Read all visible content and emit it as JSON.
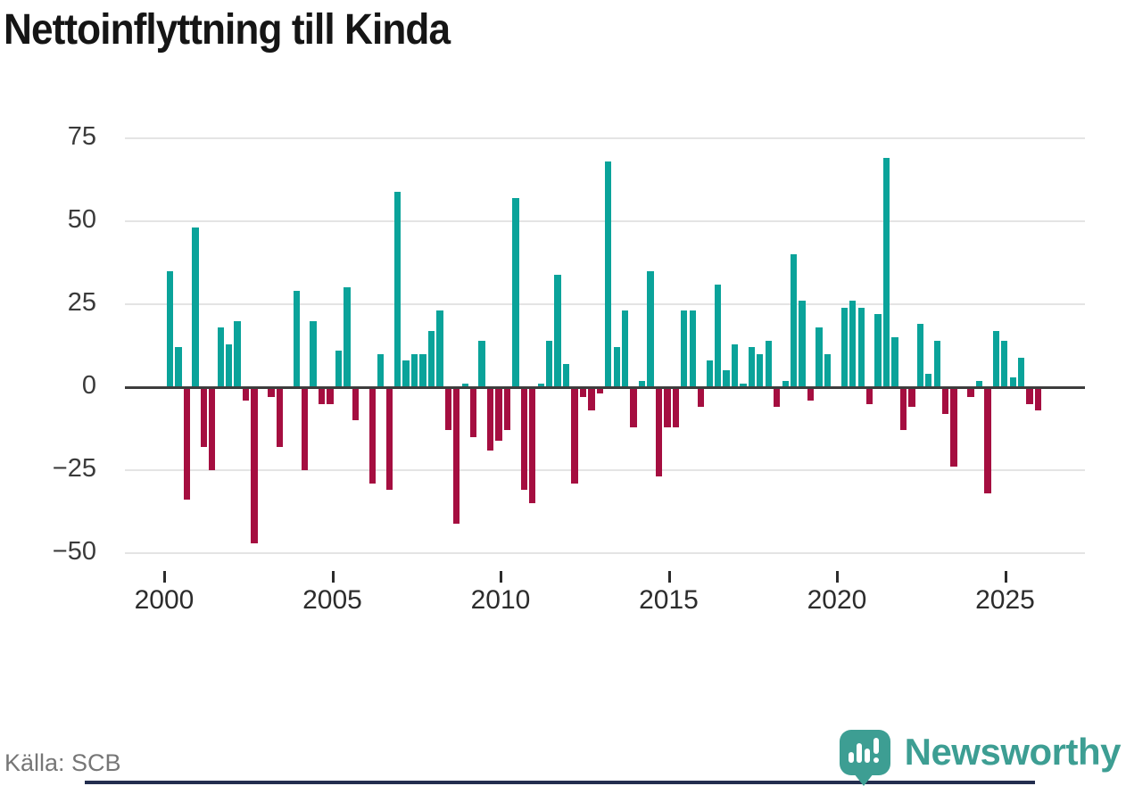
{
  "title": "Nettoinflyttning till Kinda",
  "source": "Källa: SCB",
  "logo": {
    "text": "Newsworthy",
    "icon": "speech-bubble-bar-chart-icon"
  },
  "colors": {
    "positive_bar": "#0aa39a",
    "negative_bar": "#a50e40",
    "zero_line": "#3d3d3d",
    "gridline": "#e4e4e4",
    "title_text": "#151515",
    "axis_text": "#3a3a3a",
    "source_text": "#767676",
    "logo": "#3d9e93",
    "footer_bar": "#232e4f"
  },
  "chart_data": {
    "type": "bar",
    "title": "Nettoinflyttning till Kinda",
    "xlabel": "",
    "ylabel": "",
    "resolution": "quarterly",
    "grid": "horizontal",
    "legend": "none",
    "ylim": [
      -50,
      75
    ],
    "y_ticks": [
      75,
      50,
      25,
      0,
      -25,
      -50
    ],
    "x_ticks": [
      "2000",
      "2005",
      "2010",
      "2015",
      "2020",
      "2025"
    ],
    "series": [
      {
        "year": 2000,
        "values": [
          35,
          12,
          -34,
          48
        ]
      },
      {
        "year": 2001,
        "values": [
          -18,
          -25,
          18,
          13
        ]
      },
      {
        "year": 2002,
        "values": [
          20,
          -4,
          -47,
          0
        ]
      },
      {
        "year": 2003,
        "values": [
          -3,
          -18,
          0,
          29
        ]
      },
      {
        "year": 2004,
        "values": [
          -25,
          20,
          -5,
          -5
        ]
      },
      {
        "year": 2005,
        "values": [
          11,
          30,
          -10,
          0
        ]
      },
      {
        "year": 2006,
        "values": [
          -29,
          10,
          -31,
          59
        ]
      },
      {
        "year": 2007,
        "values": [
          8,
          10,
          10,
          17
        ]
      },
      {
        "year": 2008,
        "values": [
          23,
          -13,
          -41,
          1
        ]
      },
      {
        "year": 2009,
        "values": [
          -15,
          14,
          -19,
          -16
        ]
      },
      {
        "year": 2010,
        "values": [
          -13,
          57,
          -31,
          -35
        ]
      },
      {
        "year": 2011,
        "values": [
          1,
          14,
          34,
          7
        ]
      },
      {
        "year": 2012,
        "values": [
          -29,
          -3,
          -7,
          -2
        ]
      },
      {
        "year": 2013,
        "values": [
          68,
          12,
          23,
          -12
        ]
      },
      {
        "year": 2014,
        "values": [
          2,
          35,
          -27,
          -12
        ]
      },
      {
        "year": 2015,
        "values": [
          -12,
          23,
          23,
          -6
        ]
      },
      {
        "year": 2016,
        "values": [
          8,
          31,
          5,
          13
        ]
      },
      {
        "year": 2017,
        "values": [
          1,
          12,
          10,
          14
        ]
      },
      {
        "year": 2018,
        "values": [
          -6,
          2,
          40,
          26
        ]
      },
      {
        "year": 2019,
        "values": [
          -4,
          18,
          10,
          0
        ]
      },
      {
        "year": 2020,
        "values": [
          24,
          26,
          24,
          -5
        ]
      },
      {
        "year": 2021,
        "values": [
          22,
          69,
          15,
          -13
        ]
      },
      {
        "year": 2022,
        "values": [
          -6,
          19,
          4,
          14
        ]
      },
      {
        "year": 2023,
        "values": [
          -8,
          -24,
          0,
          -3
        ]
      },
      {
        "year": 2024,
        "values": [
          2,
          -32,
          17,
          14
        ]
      },
      {
        "year": 2025,
        "values": [
          3,
          9,
          -5,
          -7
        ]
      }
    ]
  }
}
